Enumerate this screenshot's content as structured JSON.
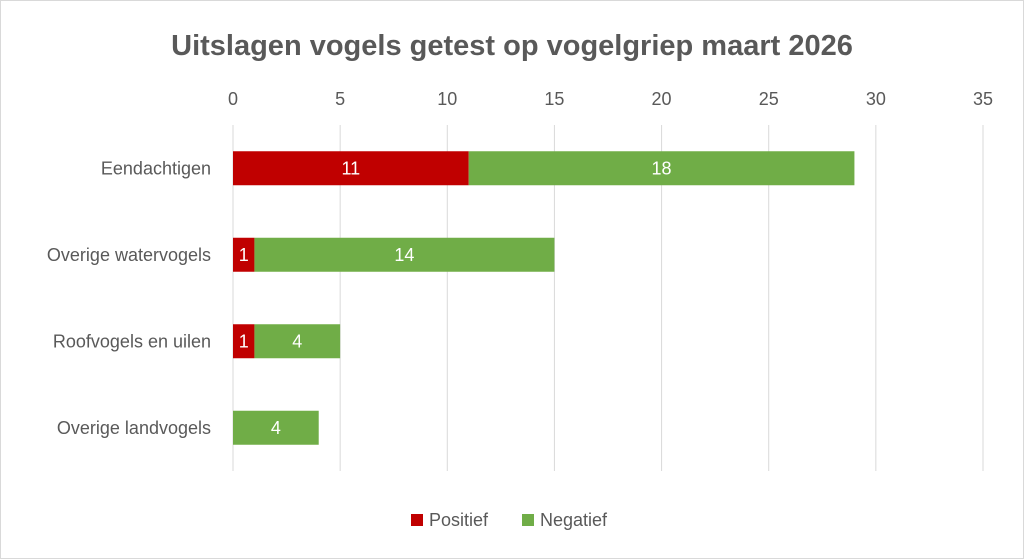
{
  "chart_data": {
    "type": "bar",
    "orientation": "horizontal",
    "stacked": true,
    "title": "Uitslagen vogels getest op vogelgriep maart 2026",
    "categories": [
      "Eendachtigen",
      "Overige watervogels",
      "Roofvogels en uilen",
      "Overige landvogels"
    ],
    "series": [
      {
        "name": "Positief",
        "color": "#c00000",
        "values": [
          11,
          1,
          1,
          0
        ]
      },
      {
        "name": "Negatief",
        "color": "#70ad47",
        "values": [
          18,
          14,
          4,
          4
        ]
      }
    ],
    "xlim": [
      0,
      35
    ],
    "xticks": [
      0,
      5,
      10,
      15,
      20,
      25,
      30,
      35
    ],
    "axis_position": "top",
    "grid": true,
    "legend_position": "bottom"
  }
}
